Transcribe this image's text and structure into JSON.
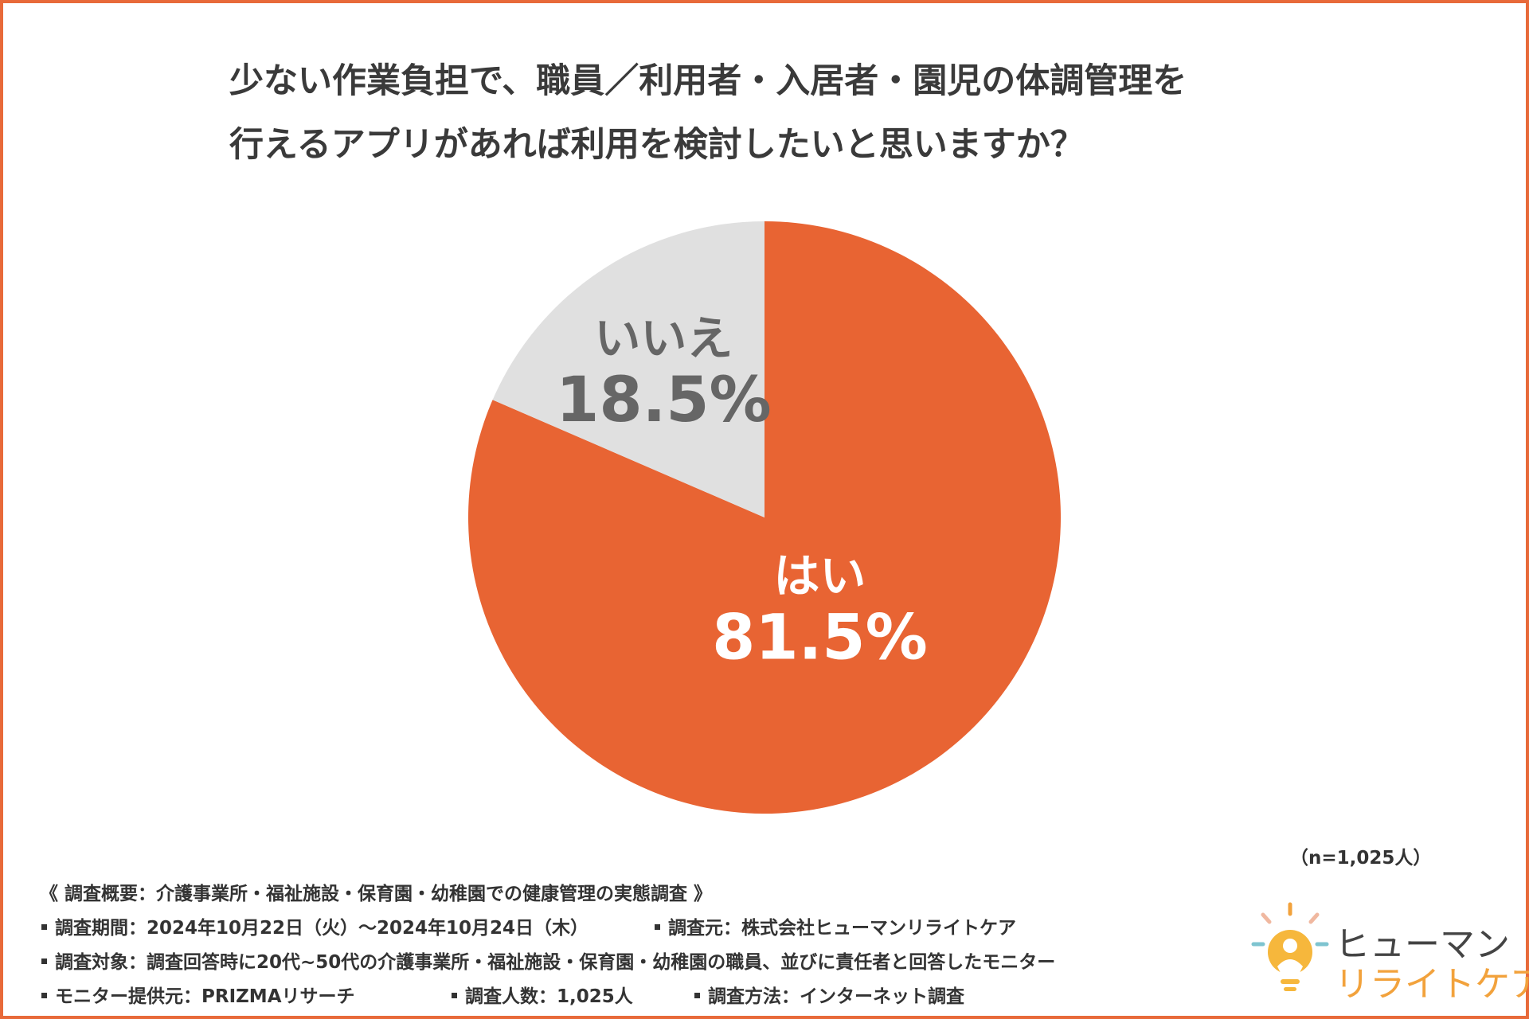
{
  "title": {
    "line1": "少ない作業負担で、職員／利用者・入居者・園児の体調管理を",
    "line2": "行えるアプリがあれば利用を検討したいと思いますか？"
  },
  "chart_data": {
    "type": "pie",
    "title": "少ない作業負担で、職員／利用者・入居者・園児の体調管理を行えるアプリがあれば利用を検討したいと思いますか？",
    "slices": [
      {
        "label": "はい",
        "value": 81.5,
        "display": "81.5%",
        "color": "#e86433",
        "text_color": "#ffffff"
      },
      {
        "label": "いいえ",
        "value": 18.5,
        "display": "18.5%",
        "color": "#e0e0e0",
        "text_color": "#666666"
      }
    ],
    "start": "12 o'clock",
    "direction": "clockwise"
  },
  "sample_size": "（n=1,025人）",
  "survey": {
    "header": "《 調査概要：介護事業所・福祉施設・保育園・幼稚園での健康管理の実態調査 》",
    "period": "調査期間：2024年10月22日（火）～2024年10月24日（木）",
    "source": "調査元：株式会社ヒューマンリライトケア",
    "target": "調査対象：調査回答時に20代~50代の介護事業所・福祉施設・保育園・幼稚園の職員、並びに責任者と回答したモニター",
    "provider": "モニター提供元：PRIZMAリサーチ",
    "count": "調査人数：1,025人",
    "method": "調査方法：インターネット調査"
  },
  "logo": {
    "line1": "ヒューマン",
    "line2": "リライトケア"
  },
  "colors": {
    "border": "#e86a3a",
    "accent": "#e86433",
    "neutral": "#e0e0e0"
  }
}
